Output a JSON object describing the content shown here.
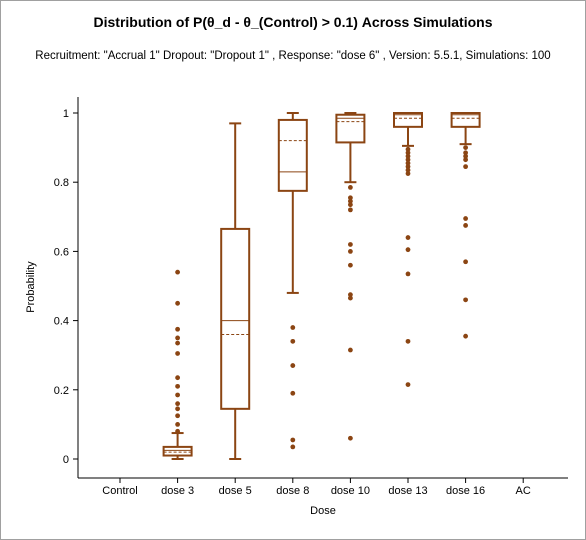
{
  "chart_data": {
    "type": "box",
    "title": "Distribution of P(θ_d - θ_(Control) > 0.1) Across Simulations",
    "subtitle": "Recruitment: \"Accrual 1\" Dropout: \"Dropout 1\" , Response: \"dose 6\" , Version: 5.5.1, Simulations: 100",
    "xlabel": "Dose",
    "ylabel": "Probability",
    "ylim": [
      0,
      1
    ],
    "yticks": [
      "0",
      "0.2",
      "0.4",
      "0.6",
      "0.8",
      "1"
    ],
    "yticks_values": [
      0,
      0.2,
      0.4,
      0.6,
      0.8,
      1
    ],
    "categories": [
      "Control",
      "dose 3",
      "dose 5",
      "dose 8",
      "dose 10",
      "dose 13",
      "dose 16",
      "AC"
    ],
    "color": "#8b4513",
    "boxes": [
      null,
      {
        "whisker_low": 0.0,
        "q1": 0.01,
        "median": 0.025,
        "mean": 0.02,
        "q3": 0.035,
        "whisker_high": 0.075,
        "outliers": [
          0.54,
          0.45,
          0.375,
          0.35,
          0.335,
          0.305,
          0.235,
          0.21,
          0.185,
          0.16,
          0.145,
          0.125,
          0.1,
          0.08
        ]
      },
      {
        "whisker_low": 0.0,
        "q1": 0.145,
        "median": 0.4,
        "mean": 0.36,
        "q3": 0.665,
        "whisker_high": 0.97,
        "outliers": []
      },
      {
        "whisker_low": 0.48,
        "q1": 0.775,
        "median": 0.83,
        "mean": 0.92,
        "q3": 0.98,
        "whisker_high": 1.0,
        "outliers": [
          0.38,
          0.34,
          0.27,
          0.19,
          0.055,
          0.035
        ]
      },
      {
        "whisker_low": 0.8,
        "q1": 0.915,
        "median": 0.985,
        "mean": 0.975,
        "q3": 0.995,
        "whisker_high": 1.0,
        "outliers": [
          0.785,
          0.755,
          0.745,
          0.735,
          0.72,
          0.62,
          0.6,
          0.56,
          0.475,
          0.465,
          0.315,
          0.06
        ]
      },
      {
        "whisker_low": 0.905,
        "q1": 0.96,
        "median": 0.995,
        "mean": 0.985,
        "q3": 1.0,
        "whisker_high": 1.0,
        "outliers": [
          0.895,
          0.885,
          0.875,
          0.865,
          0.855,
          0.845,
          0.835,
          0.825,
          0.64,
          0.605,
          0.535,
          0.34,
          0.215
        ]
      },
      {
        "whisker_low": 0.91,
        "q1": 0.96,
        "median": 0.995,
        "mean": 0.985,
        "q3": 1.0,
        "whisker_high": 1.0,
        "outliers": [
          0.9,
          0.885,
          0.875,
          0.865,
          0.845,
          0.695,
          0.675,
          0.57,
          0.46,
          0.355
        ]
      },
      null
    ],
    "grid": false,
    "legend": "none"
  }
}
